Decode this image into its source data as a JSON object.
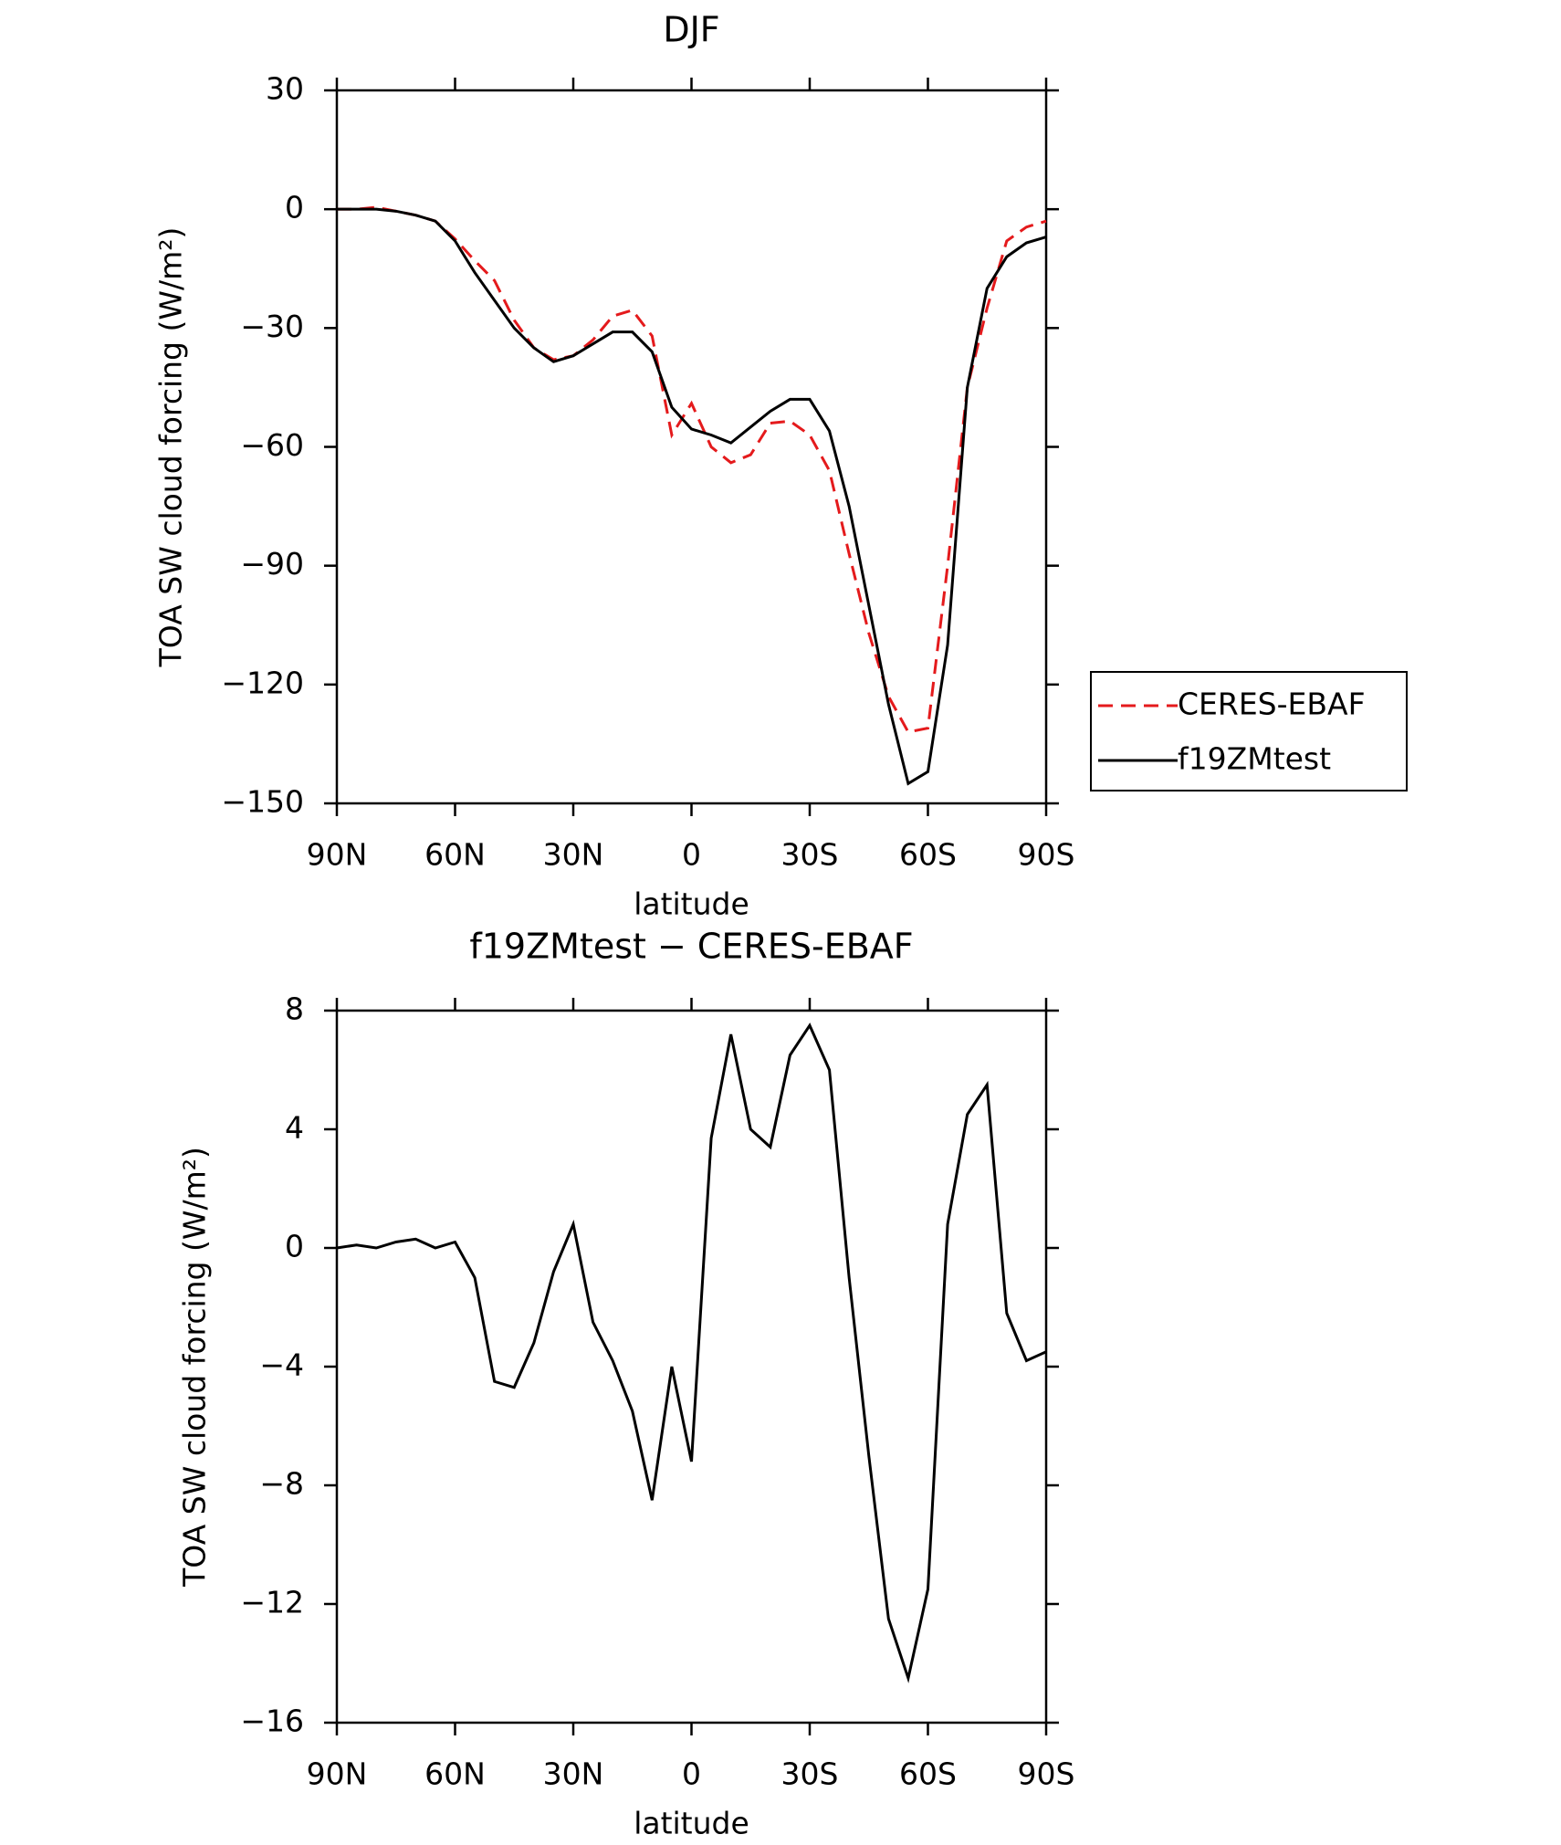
{
  "chart_data": [
    {
      "type": "line",
      "title": "DJF",
      "xlabel": "latitude",
      "ylabel": "TOA SW cloud forcing (W/m²)",
      "x": [
        90,
        85,
        80,
        75,
        70,
        65,
        60,
        55,
        50,
        45,
        40,
        35,
        30,
        25,
        20,
        15,
        10,
        5,
        0,
        -5,
        -10,
        -15,
        -20,
        -25,
        -30,
        -35,
        -40,
        -45,
        -50,
        -55,
        -60,
        -65,
        -70,
        -75,
        -80,
        -85,
        -90
      ],
      "series": [
        {
          "name": "CERES-EBAF",
          "color": "#e41a1c",
          "dashed": true,
          "values": [
            0,
            0,
            0.5,
            -0.5,
            -1.5,
            -3,
            -7.5,
            -13,
            -18,
            -28,
            -35,
            -38,
            -37,
            -33,
            -27,
            -25.5,
            -32,
            -57,
            -49,
            -60,
            -64,
            -62,
            -54,
            -53.5,
            -57,
            -66,
            -87,
            -107,
            -123,
            -132,
            -131,
            -90,
            -45,
            -25,
            -8,
            -4.5,
            -3
          ]
        },
        {
          "name": "f19ZMtest",
          "color": "#000000",
          "dashed": false,
          "values": [
            0,
            0,
            0,
            -0.5,
            -1.5,
            -3,
            -8,
            -16,
            -23,
            -30,
            -35,
            -38.5,
            -37,
            -34,
            -31,
            -31,
            -36,
            -50,
            -55.5,
            -57,
            -59,
            -55,
            -51,
            -48,
            -48,
            -56,
            -75,
            -100,
            -125,
            -145,
            -142,
            -110,
            -45,
            -20,
            -12,
            -8.5,
            -7
          ]
        }
      ],
      "xlim": [
        90,
        -90
      ],
      "xticks": [
        {
          "value": 90,
          "label": "90N"
        },
        {
          "value": 60,
          "label": "60N"
        },
        {
          "value": 30,
          "label": "30N"
        },
        0,
        {
          "value": -30,
          "label": "30S"
        },
        {
          "value": -60,
          "label": "60S"
        },
        {
          "value": -90,
          "label": "90S"
        }
      ],
      "ylim": [
        -150,
        30
      ],
      "yticks": [
        {
          "value": -150,
          "label": "−150"
        },
        {
          "value": -120,
          "label": "−120"
        },
        {
          "value": -90,
          "label": "−90"
        },
        {
          "value": -60,
          "label": "−60"
        },
        {
          "value": -30,
          "label": "−30"
        },
        0,
        30
      ],
      "legend": "right"
    },
    {
      "type": "line",
      "title": "f19ZMtest − CERES-EBAF",
      "xlabel": "latitude",
      "ylabel": "TOA SW cloud forcing (W/m²)",
      "x": [
        90,
        85,
        80,
        75,
        70,
        65,
        60,
        55,
        50,
        45,
        40,
        35,
        30,
        25,
        20,
        15,
        10,
        5,
        0,
        -5,
        -10,
        -15,
        -20,
        -25,
        -30,
        -35,
        -40,
        -45,
        -50,
        -55,
        -60,
        -65,
        -70,
        -75,
        -80,
        -85,
        -90
      ],
      "values": [
        0,
        0.1,
        0,
        0.2,
        0.3,
        0,
        0.2,
        -1,
        -4.5,
        -4.7,
        -3.2,
        -0.8,
        0.8,
        -2.5,
        -3.8,
        -5.5,
        -8.5,
        -4,
        -7.2,
        3.7,
        7.2,
        4,
        3.4,
        6.5,
        7.5,
        6,
        -1,
        -7,
        -12.5,
        -14.5,
        -11.5,
        0.8,
        4.5,
        5.5,
        -2.2,
        -3.8,
        -3.5
      ],
      "color": "#000000",
      "xlim": [
        90,
        -90
      ],
      "xticks": [
        {
          "value": 90,
          "label": "90N"
        },
        {
          "value": 60,
          "label": "60N"
        },
        {
          "value": 30,
          "label": "30N"
        },
        0,
        {
          "value": -30,
          "label": "30S"
        },
        {
          "value": -60,
          "label": "60S"
        },
        {
          "value": -90,
          "label": "90S"
        }
      ],
      "ylim": [
        -16,
        8
      ],
      "yticks": [
        {
          "value": -16,
          "label": "−16"
        },
        {
          "value": -12,
          "label": "−12"
        },
        {
          "value": -8,
          "label": "−8"
        },
        {
          "value": -4,
          "label": "−4"
        },
        0,
        4,
        8
      ]
    }
  ]
}
